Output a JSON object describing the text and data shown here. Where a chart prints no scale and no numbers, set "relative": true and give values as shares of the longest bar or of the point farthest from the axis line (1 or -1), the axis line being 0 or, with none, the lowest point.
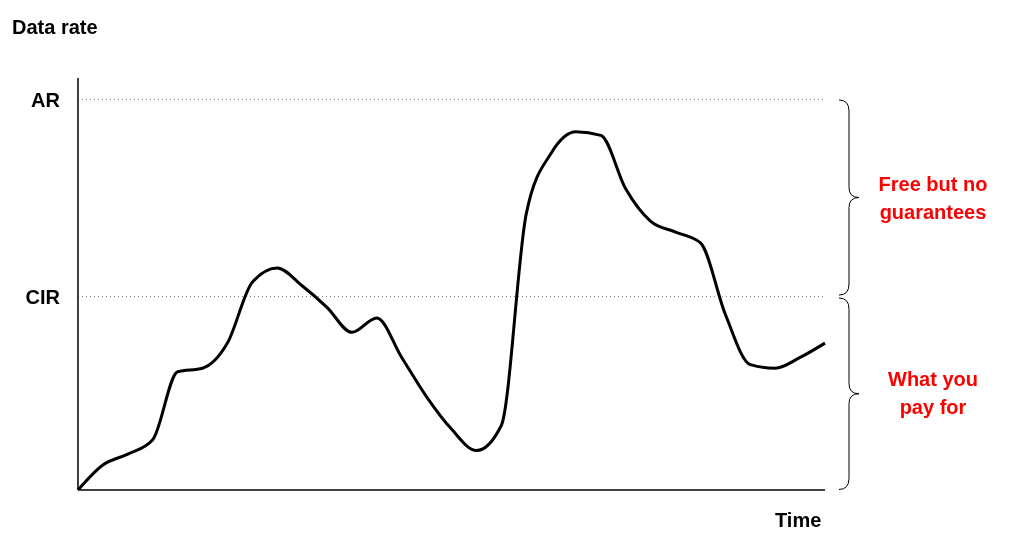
{
  "chart_data": {
    "type": "line",
    "relative": true,
    "xlabel": "Time",
    "ylabel": "Data rate",
    "categories": [
      null,
      null,
      null,
      null,
      null,
      null,
      null,
      null,
      null,
      null,
      null,
      null,
      null,
      null,
      null,
      null,
      null,
      null,
      null,
      null,
      null,
      null,
      null,
      null,
      null,
      null,
      null,
      null,
      null,
      null,
      null
    ],
    "series": [
      {
        "color": "#000000",
        "values": [
          0,
          0.07,
          0.1,
          0.14,
          0.33,
          0.34,
          0.41,
          0.58,
          0.62,
          0.57,
          0.51,
          0.44,
          0.48,
          0.37,
          0.26,
          0.17,
          0.11,
          0.18,
          0.77,
          0.94,
          1.0,
          0.99,
          0.84,
          0.75,
          0.72,
          0.69,
          0.49,
          0.35,
          0.34,
          0.37,
          0.41
        ]
      }
    ],
    "ref_lines": [
      {
        "axis": "y",
        "value": 1.09,
        "label": "AR",
        "color": "#808080",
        "line_style": "dotted"
      },
      {
        "axis": "y",
        "value": 0.54,
        "label": "CIR",
        "color": "#808080",
        "line_style": "dotted"
      }
    ],
    "annotations": [
      "Free but no guarantees",
      "What you pay for"
    ],
    "marker": "none"
  }
}
